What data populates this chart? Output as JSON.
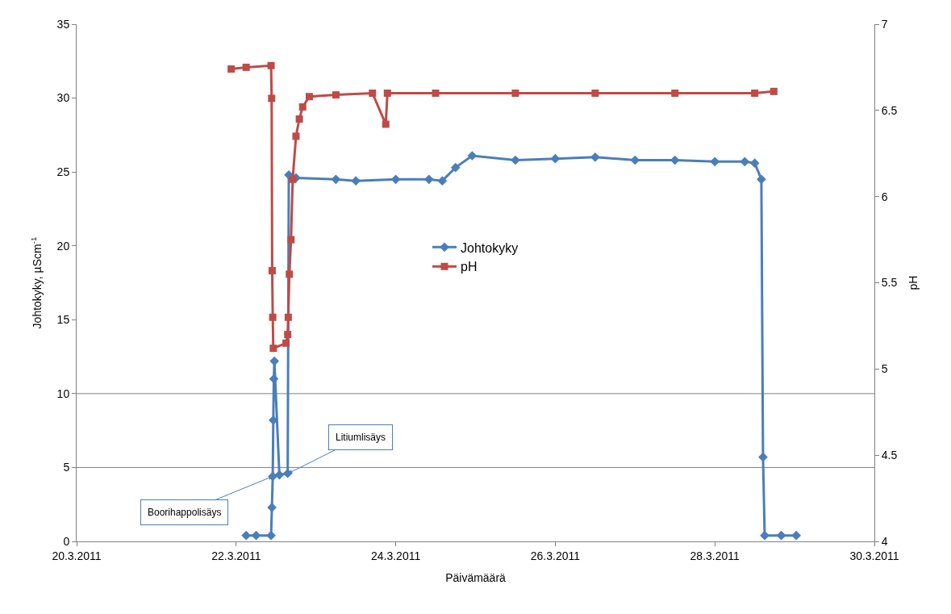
{
  "chart_data": {
    "type": "line",
    "xlabel": "Päivämäärä",
    "ylabel": "Johtokyky, µScm$^{-1}$",
    "y2label": "pH",
    "xlim": [
      "2011-03-20",
      "2011-03-30"
    ],
    "xticks": [
      {
        "value": "2011-03-20",
        "label": "20.3.2011"
      },
      {
        "value": "2011-03-22",
        "label": "22.3.2011"
      },
      {
        "value": "2011-03-24",
        "label": "24.3.2011"
      },
      {
        "value": "2011-03-26",
        "label": "26.3.2011"
      },
      {
        "value": "2011-03-28",
        "label": "28.3.2011"
      },
      {
        "value": "2011-03-30",
        "label": "30.3.2011"
      }
    ],
    "ylim": [
      0,
      35
    ],
    "yticks": [
      0,
      5,
      10,
      15,
      20,
      25,
      30,
      35
    ],
    "y2lim": [
      4,
      7
    ],
    "y2ticks": [
      4,
      4.5,
      5,
      5.5,
      6,
      6.5,
      7
    ],
    "legend": "center",
    "grid": false,
    "ref_lines": [
      {
        "axis": "y",
        "value": 5,
        "color": "#808080"
      },
      {
        "axis": "y",
        "value": 10,
        "color": "#808080"
      }
    ],
    "annotations": [
      {
        "text": "Boorihappolisäys",
        "x": "2011-03-22T11:00",
        "y": 4.4
      },
      {
        "text": "Litiumlisäys",
        "x": "2011-03-22T15:40",
        "y": 4.6
      }
    ],
    "series": [
      {
        "name": "Johtokyky",
        "color": "#4a7ebb",
        "marker": "diamond",
        "x": [
          "2011-03-22T03:00",
          "2011-03-22T06:00",
          "2011-03-22T10:30",
          "2011-03-22T10:45",
          "2011-03-22T11:00",
          "2011-03-22T11:10",
          "2011-03-22T11:20",
          "2011-03-22T11:30",
          "2011-03-22T13:00",
          "2011-03-22T15:30",
          "2011-03-22T15:50",
          "2011-03-22T18:00",
          "2011-03-23T06:00",
          "2011-03-23T12:00",
          "2011-03-24T00:00",
          "2011-03-24T10:00",
          "2011-03-24T14:00",
          "2011-03-24T18:00",
          "2011-03-24T23:00",
          "2011-03-25T12:00",
          "2011-03-26T00:00",
          "2011-03-26T12:00",
          "2011-03-27T00:00",
          "2011-03-27T12:00",
          "2011-03-28T00:00",
          "2011-03-28T09:00",
          "2011-03-28T12:00",
          "2011-03-28T14:00",
          "2011-03-28T14:30",
          "2011-03-28T15:00",
          "2011-03-28T20:00",
          "2011-03-29T00:30"
        ],
        "values": [
          0.4,
          0.4,
          0.4,
          2.3,
          4.4,
          8.2,
          11,
          12.2,
          4.5,
          4.6,
          24.8,
          24.6,
          24.5,
          24.4,
          24.5,
          24.5,
          24.4,
          25.3,
          26.1,
          25.8,
          25.9,
          26.0,
          25.8,
          25.8,
          25.7,
          25.7,
          25.6,
          24.5,
          5.7,
          0.4,
          0.4,
          0.4
        ]
      },
      {
        "name": "pH",
        "color": "#be4b48",
        "marker": "square",
        "axis": "y2",
        "x": [
          "2011-03-21T22:30",
          "2011-03-22T03:00",
          "2011-03-22T10:30",
          "2011-03-22T10:40",
          "2011-03-22T10:50",
          "2011-03-22T11:00",
          "2011-03-22T11:10",
          "2011-03-22T15:00",
          "2011-03-22T15:30",
          "2011-03-22T15:40",
          "2011-03-22T16:00",
          "2011-03-22T16:30",
          "2011-03-22T17:00",
          "2011-03-22T18:00",
          "2011-03-22T19:00",
          "2011-03-22T20:00",
          "2011-03-22T22:00",
          "2011-03-23T06:00",
          "2011-03-23T17:00",
          "2011-03-23T21:00",
          "2011-03-23T21:30",
          "2011-03-24T12:00",
          "2011-03-25T12:00",
          "2011-03-26T12:00",
          "2011-03-27T12:00",
          "2011-03-28T12:00",
          "2011-03-28T17:45"
        ],
        "values": [
          6.74,
          6.75,
          6.76,
          6.57,
          5.57,
          5.3,
          5.12,
          5.15,
          5.2,
          5.3,
          5.55,
          5.75,
          6.1,
          6.35,
          6.45,
          6.52,
          6.58,
          6.59,
          6.6,
          6.42,
          6.6,
          6.6,
          6.6,
          6.6,
          6.6,
          6.6,
          6.61
        ]
      }
    ]
  }
}
